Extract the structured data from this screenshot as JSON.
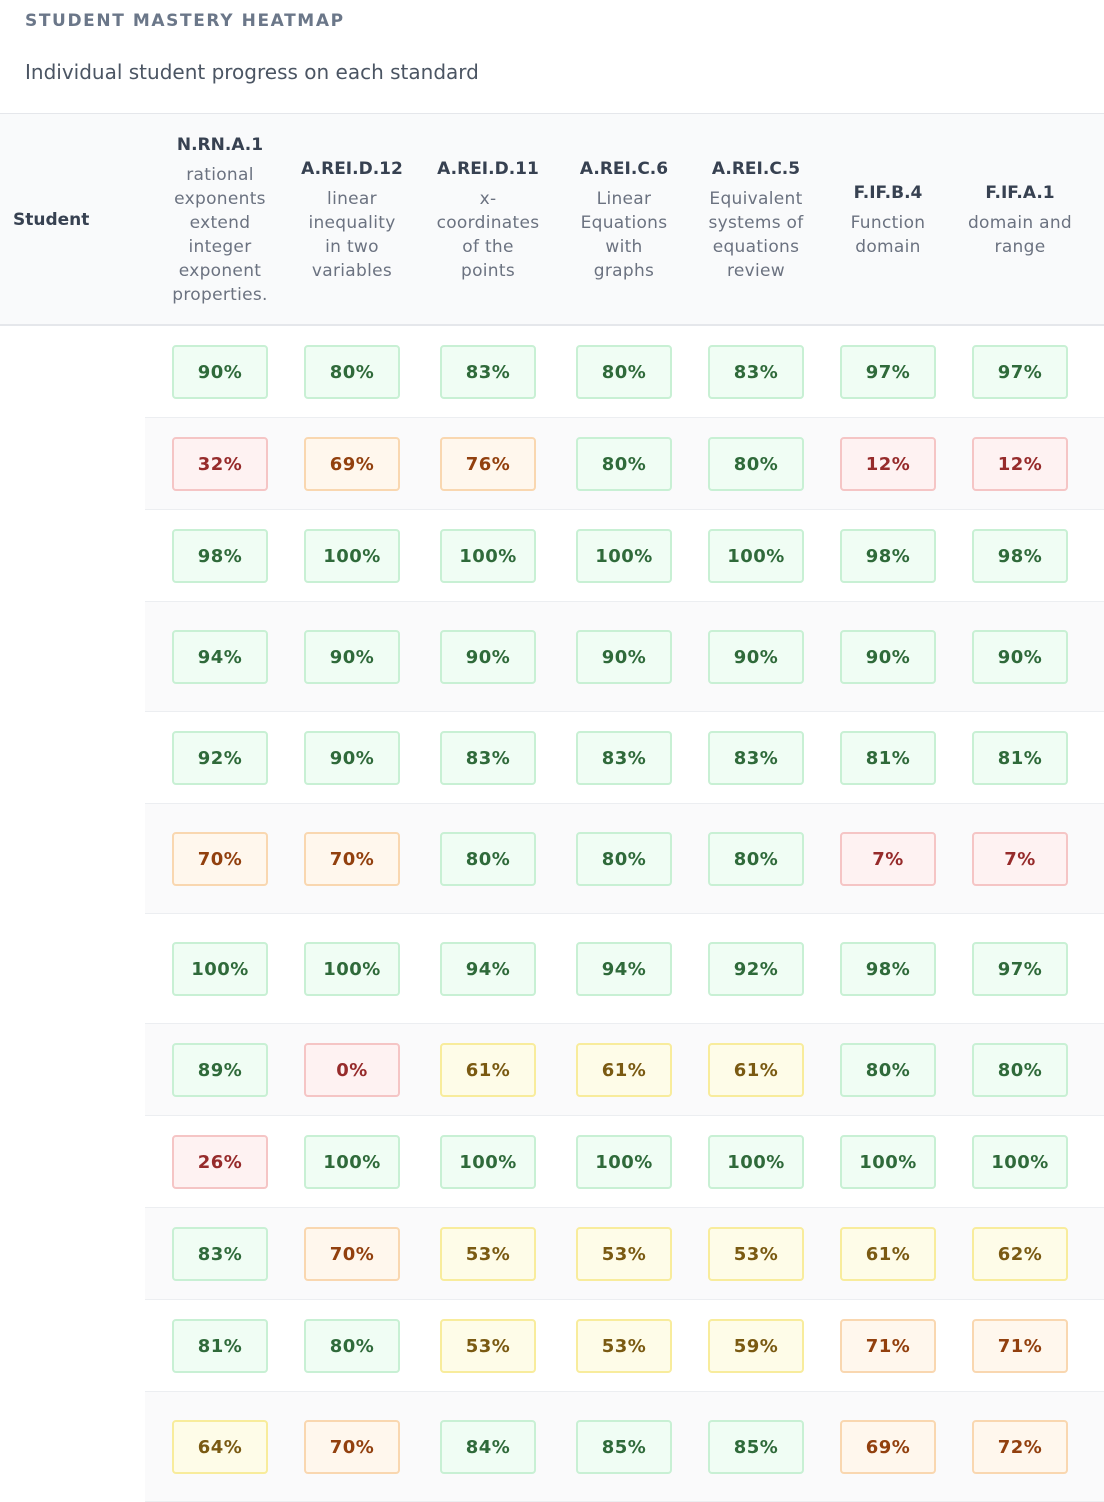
{
  "header": {
    "eyebrow": "STUDENT MASTERY HEATMAP",
    "subtitle": "Individual student progress on each standard"
  },
  "table": {
    "student_header": "Student",
    "standards": [
      {
        "code": "N.RN.A.1",
        "desc": "rational exponents extend integer exponent properties."
      },
      {
        "code": "A.REI.D.12",
        "desc": "linear inequality in two variables"
      },
      {
        "code": "A.REI.D.11",
        "desc": "x-coordinates of the points"
      },
      {
        "code": "A.REI.C.6",
        "desc": "Linear Equations with graphs"
      },
      {
        "code": "A.REI.C.5",
        "desc": "Equivalent systems of equations review"
      },
      {
        "code": "F.IF.B.4",
        "desc": "Function domain"
      },
      {
        "code": "F.IF.A.1",
        "desc": "domain and range"
      }
    ],
    "rows": [
      {
        "scores": [
          "90%",
          "80%",
          "83%",
          "80%",
          "83%",
          "97%",
          "97%"
        ],
        "levels": [
          "high",
          "high",
          "high",
          "high",
          "high",
          "high",
          "high"
        ]
      },
      {
        "scores": [
          "32%",
          "69%",
          "76%",
          "80%",
          "80%",
          "12%",
          "12%"
        ],
        "levels": [
          "low",
          "warn",
          "warn",
          "high",
          "high",
          "low",
          "low"
        ]
      },
      {
        "scores": [
          "98%",
          "100%",
          "100%",
          "100%",
          "100%",
          "98%",
          "98%"
        ],
        "levels": [
          "high",
          "high",
          "high",
          "high",
          "high",
          "high",
          "high"
        ]
      },
      {
        "scores": [
          "94%",
          "90%",
          "90%",
          "90%",
          "90%",
          "90%",
          "90%"
        ],
        "levels": [
          "high",
          "high",
          "high",
          "high",
          "high",
          "high",
          "high"
        ]
      },
      {
        "scores": [
          "92%",
          "90%",
          "83%",
          "83%",
          "83%",
          "81%",
          "81%"
        ],
        "levels": [
          "high",
          "high",
          "high",
          "high",
          "high",
          "high",
          "high"
        ]
      },
      {
        "scores": [
          "70%",
          "70%",
          "80%",
          "80%",
          "80%",
          "7%",
          "7%"
        ],
        "levels": [
          "warn",
          "warn",
          "high",
          "high",
          "high",
          "low",
          "low"
        ]
      },
      {
        "scores": [
          "100%",
          "100%",
          "94%",
          "94%",
          "92%",
          "98%",
          "97%"
        ],
        "levels": [
          "high",
          "high",
          "high",
          "high",
          "high",
          "high",
          "high"
        ]
      },
      {
        "scores": [
          "89%",
          "0%",
          "61%",
          "61%",
          "61%",
          "80%",
          "80%"
        ],
        "levels": [
          "high",
          "low",
          "mid",
          "mid",
          "mid",
          "high",
          "high"
        ]
      },
      {
        "scores": [
          "26%",
          "100%",
          "100%",
          "100%",
          "100%",
          "100%",
          "100%"
        ],
        "levels": [
          "low",
          "high",
          "high",
          "high",
          "high",
          "high",
          "high"
        ]
      },
      {
        "scores": [
          "83%",
          "70%",
          "53%",
          "53%",
          "53%",
          "61%",
          "62%"
        ],
        "levels": [
          "high",
          "warn",
          "mid",
          "mid",
          "mid",
          "mid",
          "mid"
        ]
      },
      {
        "scores": [
          "81%",
          "80%",
          "53%",
          "53%",
          "59%",
          "71%",
          "71%"
        ],
        "levels": [
          "high",
          "high",
          "mid",
          "mid",
          "mid",
          "warn",
          "warn"
        ]
      },
      {
        "scores": [
          "64%",
          "70%",
          "84%",
          "85%",
          "85%",
          "69%",
          "72%"
        ],
        "levels": [
          "mid",
          "warn",
          "high",
          "high",
          "high",
          "warn",
          "warn"
        ]
      }
    ]
  }
}
